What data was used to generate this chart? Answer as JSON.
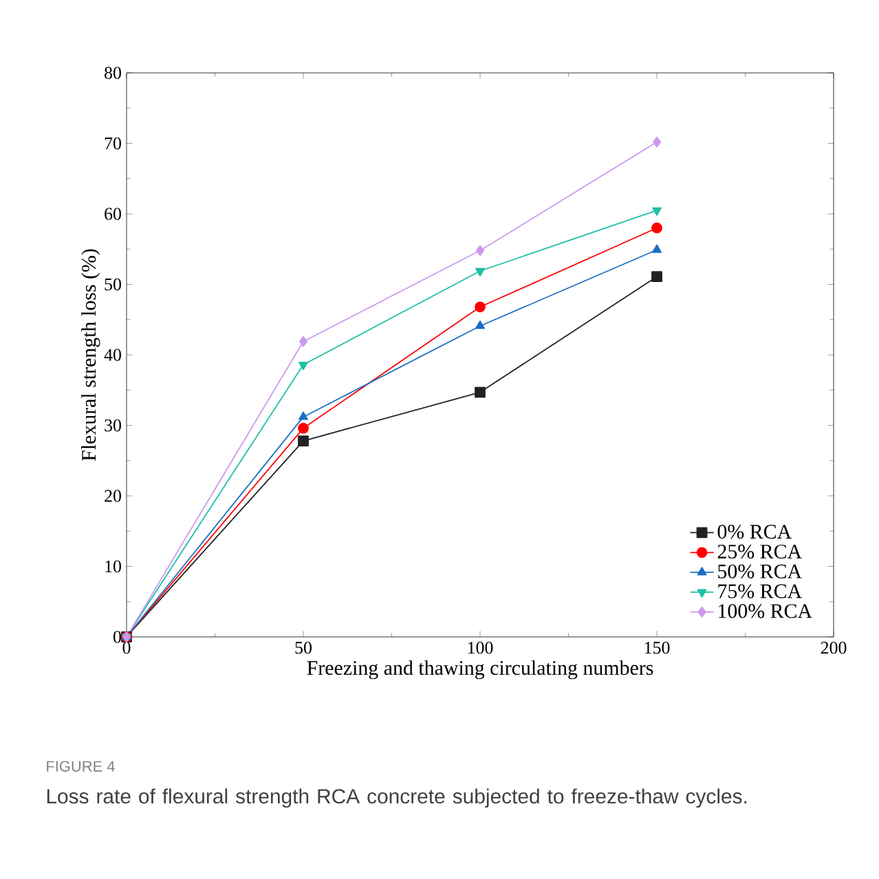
{
  "chart_data": {
    "type": "line",
    "xlabel": "Freezing and thawing circulating numbers",
    "ylabel": "Flexural strength loss (%)",
    "x": [
      0,
      50,
      100,
      150
    ],
    "series": [
      {
        "name": "0% RCA",
        "color": "#222222",
        "marker": "square",
        "values": [
          0,
          27.8,
          34.7,
          51.1
        ]
      },
      {
        "name": "25% RCA",
        "color": "#ff0000",
        "marker": "circle",
        "values": [
          0,
          29.6,
          46.8,
          58.0
        ]
      },
      {
        "name": "50% RCA",
        "color": "#1a6fc4",
        "marker": "triangle",
        "values": [
          0,
          31.2,
          44.1,
          54.9
        ]
      },
      {
        "name": "75% RCA",
        "color": "#1fbfa8",
        "marker": "triangle-down",
        "values": [
          0,
          38.6,
          51.9,
          60.5
        ]
      },
      {
        "name": "100% RCA",
        "color": "#cc99ee",
        "marker": "diamond",
        "values": [
          0,
          41.9,
          54.8,
          70.2
        ]
      }
    ],
    "xlim": [
      0,
      200
    ],
    "xticks": [
      0,
      50,
      100,
      150,
      200
    ],
    "ylim": [
      0,
      80
    ],
    "yticks": [
      0,
      10,
      20,
      30,
      40,
      50,
      60,
      70,
      80
    ],
    "grid": false,
    "legend": "bottom right",
    "line_style": "solid",
    "annotations": [
      "FIGURE 4",
      "Loss rate of flexural strength RCA concrete subjected to freeze-thaw cycles."
    ]
  }
}
